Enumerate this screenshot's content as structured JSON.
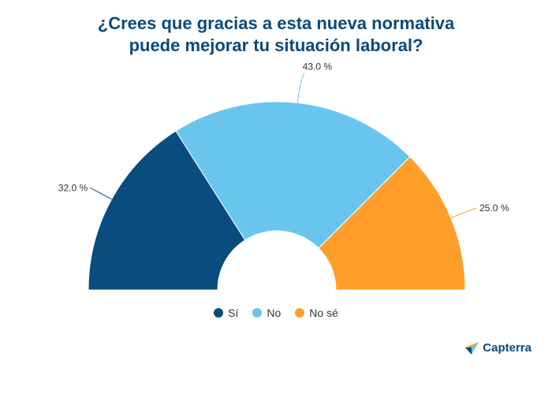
{
  "title_lines": [
    "¿Crees que gracias a esta nueva normativa",
    "puede mejorar tu situación laboral?"
  ],
  "colors": {
    "title": "#0b4a7a",
    "si": "#084d7d",
    "no": "#6ac5ee",
    "nose": "#ff9f2a"
  },
  "chart_data": {
    "type": "pie",
    "variant": "semi-donut",
    "series": [
      {
        "name": "Sí",
        "value": 32.0,
        "label": "32.0 %",
        "color": "#084d7d"
      },
      {
        "name": "No",
        "value": 43.0,
        "label": "43.0 %",
        "color": "#6ac5ee"
      },
      {
        "name": "No sé",
        "value": 25.0,
        "label": "25.0 %",
        "color": "#ff9f2a"
      }
    ],
    "legend_position": "bottom-center"
  },
  "legend": [
    {
      "label": "Sí",
      "color": "#084d7d"
    },
    {
      "label": "No",
      "color": "#6ac5ee"
    },
    {
      "label": "No sé",
      "color": "#ff9f2a"
    }
  ],
  "logo": {
    "text": "Capterra",
    "icon": "capterra-arrow-icon"
  }
}
